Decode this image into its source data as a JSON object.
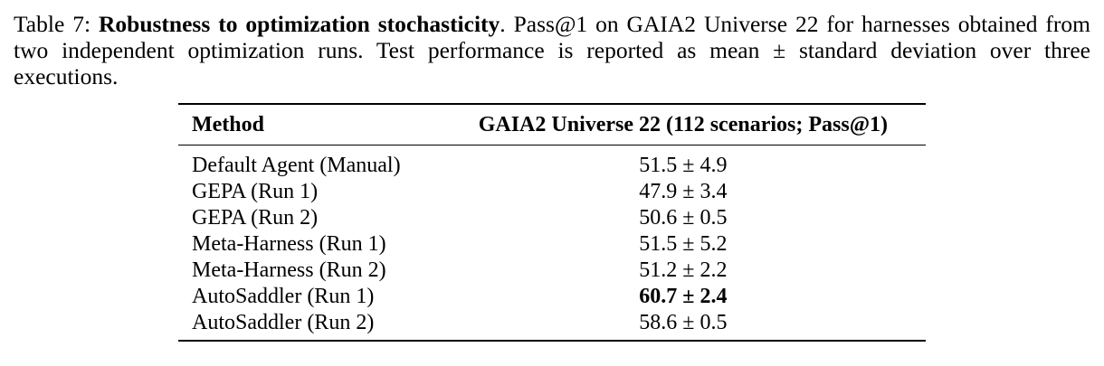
{
  "caption": {
    "label": "Table 7:",
    "title": "Robustness to optimization stochasticity",
    "text": ". Pass@1 on GAIA2 Universe 22 for harnesses obtained from two independent optimization runs. Test performance is reported as mean ± standard deviation over three executions."
  },
  "table": {
    "header": [
      "Method",
      "GAIA2 Universe 22 (112 scenarios; Pass@1)"
    ],
    "rows": [
      [
        "Default Agent (Manual)",
        "51.5 ± 4.9"
      ],
      [
        "GEPA (Run 1)",
        "47.9 ± 3.4"
      ],
      [
        "GEPA (Run 2)",
        "50.6 ± 0.5"
      ],
      [
        "Meta-Harness (Run 1)",
        "51.5 ± 5.2"
      ],
      [
        "Meta-Harness (Run 2)",
        "51.2 ± 2.2"
      ],
      [
        "AutoSaddler (Run 1)",
        "60.7 ± 2.4"
      ],
      [
        "AutoSaddler (Run 2)",
        "58.6 ± 0.5"
      ]
    ]
  }
}
